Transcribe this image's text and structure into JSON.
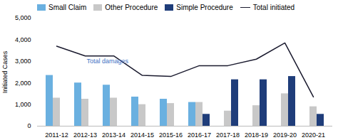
{
  "chart_data": {
    "type": "bar",
    "categories": [
      "2011-12",
      "2012-13",
      "2013-14",
      "2014-15",
      "2015-16",
      "2016-17",
      "2017-18",
      "2018-19",
      "2019-20",
      "2020-21"
    ],
    "series": [
      {
        "name": "Small Claim",
        "type": "bar",
        "color": "#6ab0e0",
        "values": [
          2350,
          2000,
          1900,
          1350,
          1250,
          1100,
          0,
          0,
          0,
          0
        ]
      },
      {
        "name": "Other Procedure",
        "type": "bar",
        "color": "#c8c8c8",
        "values": [
          1300,
          1250,
          1300,
          1000,
          1050,
          1100,
          700,
          950,
          1500,
          900
        ]
      },
      {
        "name": "Simple Procedure",
        "type": "bar",
        "color": "#1f3d7a",
        "values": [
          0,
          0,
          0,
          0,
          0,
          550,
          2150,
          2150,
          2300,
          550
        ]
      },
      {
        "name": "Total initiated",
        "type": "line",
        "color": "#1a1a2e",
        "values": [
          3700,
          3250,
          3250,
          2350,
          2300,
          2800,
          2800,
          3100,
          3850,
          1350
        ]
      }
    ],
    "annotations": [
      {
        "text": "Total damages",
        "x": "2012-13",
        "y": 2900,
        "color": "#4472c4"
      }
    ],
    "ylabel": "Initiated Cases",
    "ylim": [
      0,
      5000
    ],
    "yticks": [
      0,
      {
        "value": 1000,
        "label": "1,000"
      },
      {
        "value": 2000,
        "label": "2,000"
      },
      {
        "value": 3000,
        "label": "3,000"
      },
      {
        "value": 4000,
        "label": "4,000"
      },
      {
        "value": 5000,
        "label": "5,000"
      }
    ],
    "grid": false,
    "legend": "top"
  }
}
